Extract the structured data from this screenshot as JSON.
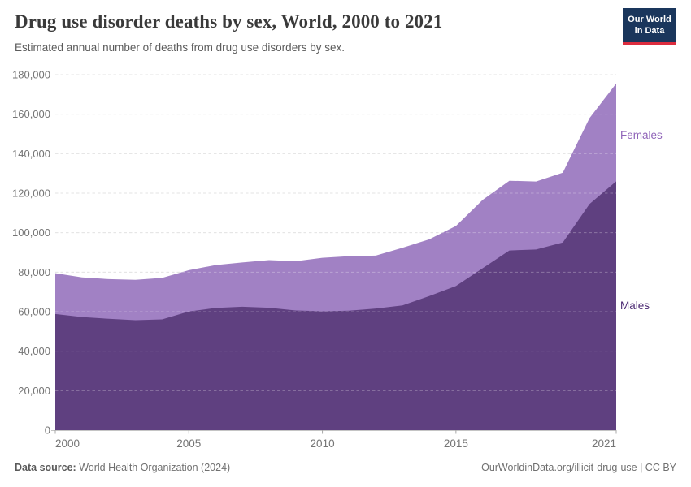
{
  "header": {
    "title": "Drug use disorder deaths by sex, World, 2000 to 2021",
    "subtitle": "Estimated annual number of deaths from drug use disorders by sex.",
    "logo": {
      "line1": "Our World",
      "line2": "in Data"
    }
  },
  "chart_data": {
    "type": "area",
    "stacked": true,
    "title": "Drug use disorder deaths by sex, World, 2000 to 2021",
    "x": [
      2000,
      2001,
      2002,
      2003,
      2004,
      2005,
      2006,
      2007,
      2008,
      2009,
      2010,
      2011,
      2012,
      2013,
      2014,
      2015,
      2016,
      2017,
      2018,
      2019,
      2020,
      2021
    ],
    "series": [
      {
        "name": "Males",
        "color": "#5f4080",
        "label_color": "#4c2a73",
        "values": [
          58800,
          57300,
          56400,
          55700,
          56100,
          60100,
          61900,
          62500,
          62000,
          60600,
          60200,
          60500,
          61600,
          63200,
          67900,
          73000,
          82000,
          91000,
          91500,
          95000,
          114500,
          126000
        ]
      },
      {
        "name": "Females",
        "color": "#a181c4",
        "label_color": "#8f63b8",
        "values": [
          20700,
          20100,
          20100,
          20400,
          21000,
          20900,
          21700,
          22400,
          24100,
          24900,
          27100,
          27600,
          26800,
          29200,
          28700,
          30400,
          34600,
          35300,
          34400,
          35400,
          43500,
          49500
        ]
      }
    ],
    "xlabel": "",
    "ylabel": "",
    "ylim": [
      0,
      180000
    ],
    "y_ticks": [
      0,
      20000,
      40000,
      60000,
      80000,
      100000,
      120000,
      140000,
      160000,
      180000
    ],
    "x_ticks": [
      2000,
      2005,
      2010,
      2015,
      2021
    ],
    "grid": "horizontal-dashed",
    "legend_position": "right-of-plot",
    "axis_color": "#757575",
    "gridline_color": "#d9d9d9"
  },
  "footer": {
    "source_label": "Data source:",
    "source_value": "World Health Organization (2024)",
    "link": "OurWorldinData.org/illicit-drug-use | CC BY"
  }
}
